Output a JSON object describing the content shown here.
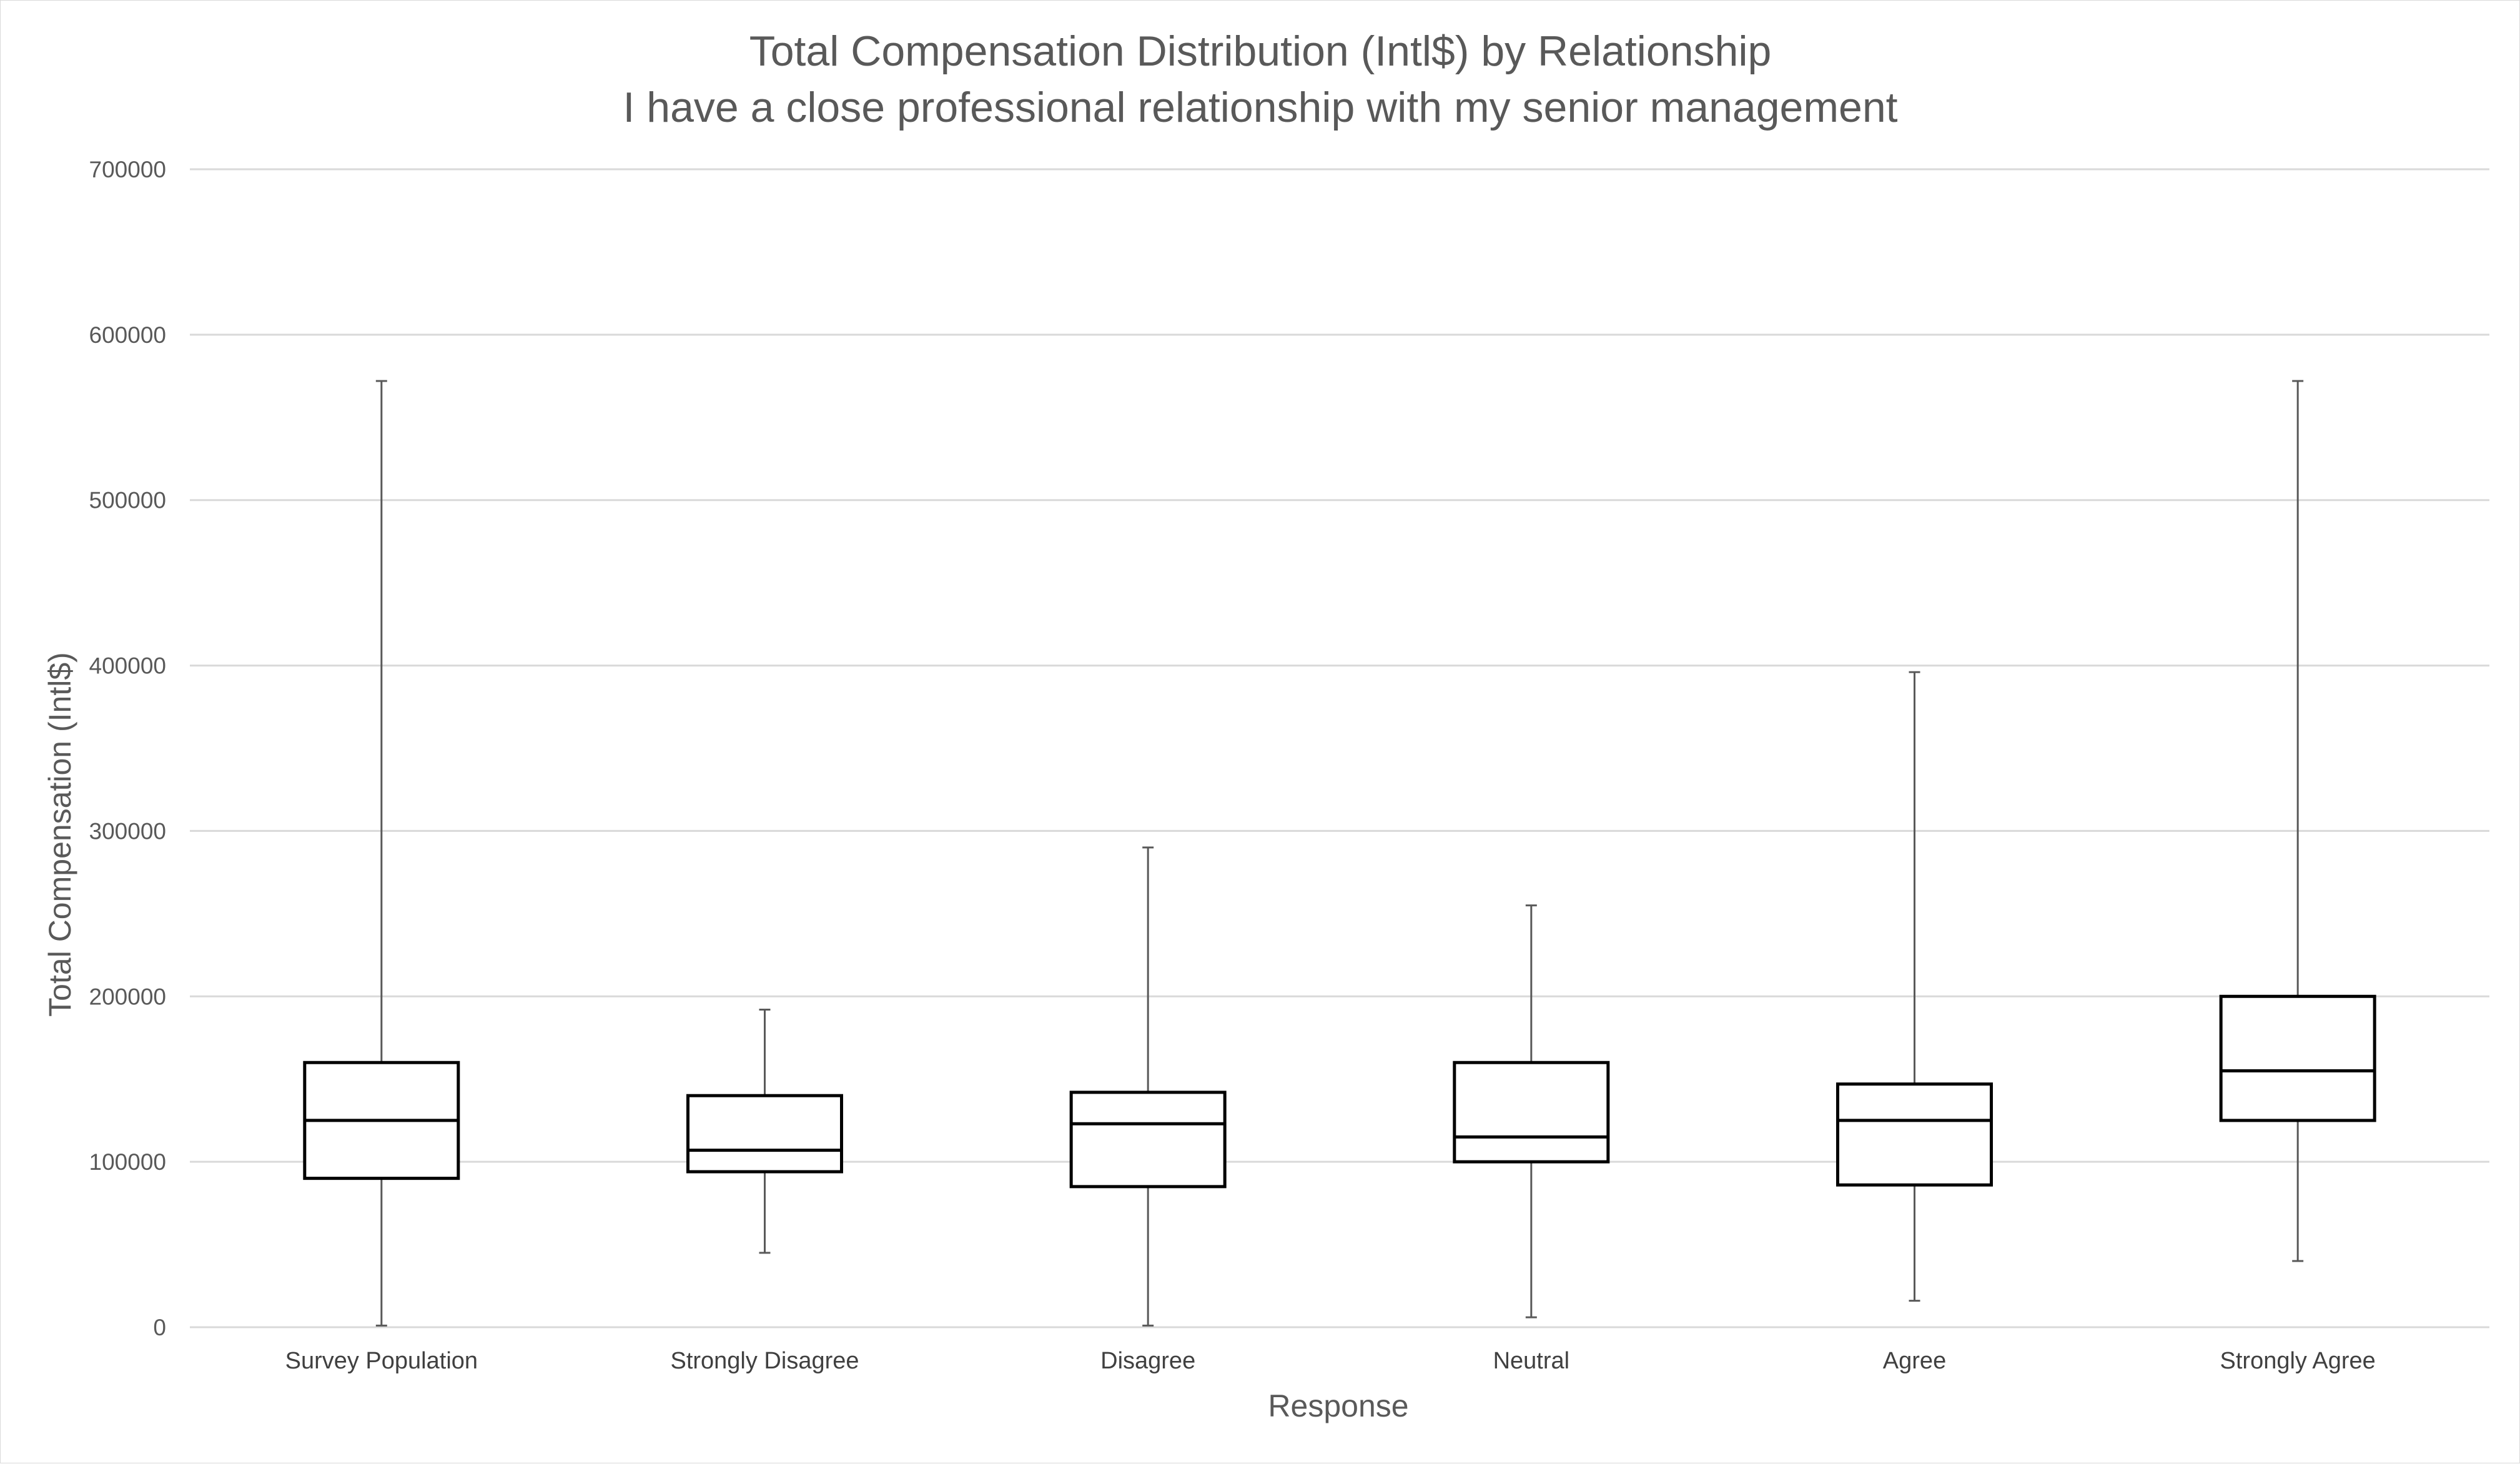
{
  "chart_data": {
    "type": "boxplot",
    "title": "Total Compensation Distribution (Intl$) by Relationship",
    "subtitle": "I have a close professional relationship with my senior management",
    "xlabel": "Response",
    "ylabel": "Total Compensation (Intl$)",
    "ylim": [
      0,
      700000
    ],
    "yticks": [
      "0",
      "100000",
      "200000",
      "300000",
      "400000",
      "500000",
      "600000",
      "700000"
    ],
    "grid": true,
    "colors": {
      "box": "#000000",
      "whisker": "#595959",
      "grid": "#d9d9d9",
      "text": "#595959"
    },
    "categories": [
      "Survey Population",
      "Strongly Disagree",
      "Disagree",
      "Neutral",
      "Agree",
      "Strongly Agree"
    ],
    "series": [
      {
        "category": "Survey Population",
        "min": 1000,
        "q1": 90000,
        "median": 125000,
        "q3": 160000,
        "max": 572000
      },
      {
        "category": "Strongly Disagree",
        "min": 45000,
        "q1": 94000,
        "median": 107000,
        "q3": 140000,
        "max": 192000
      },
      {
        "category": "Disagree",
        "min": 1000,
        "q1": 85000,
        "median": 123000,
        "q3": 142000,
        "max": 290000
      },
      {
        "category": "Neutral",
        "min": 6000,
        "q1": 100000,
        "median": 115000,
        "q3": 160000,
        "max": 255000
      },
      {
        "category": "Agree",
        "min": 16000,
        "q1": 86000,
        "median": 125000,
        "q3": 147000,
        "max": 396000
      },
      {
        "category": "Strongly Agree",
        "min": 40000,
        "q1": 125000,
        "median": 155000,
        "q3": 200000,
        "max": 572000
      }
    ]
  }
}
